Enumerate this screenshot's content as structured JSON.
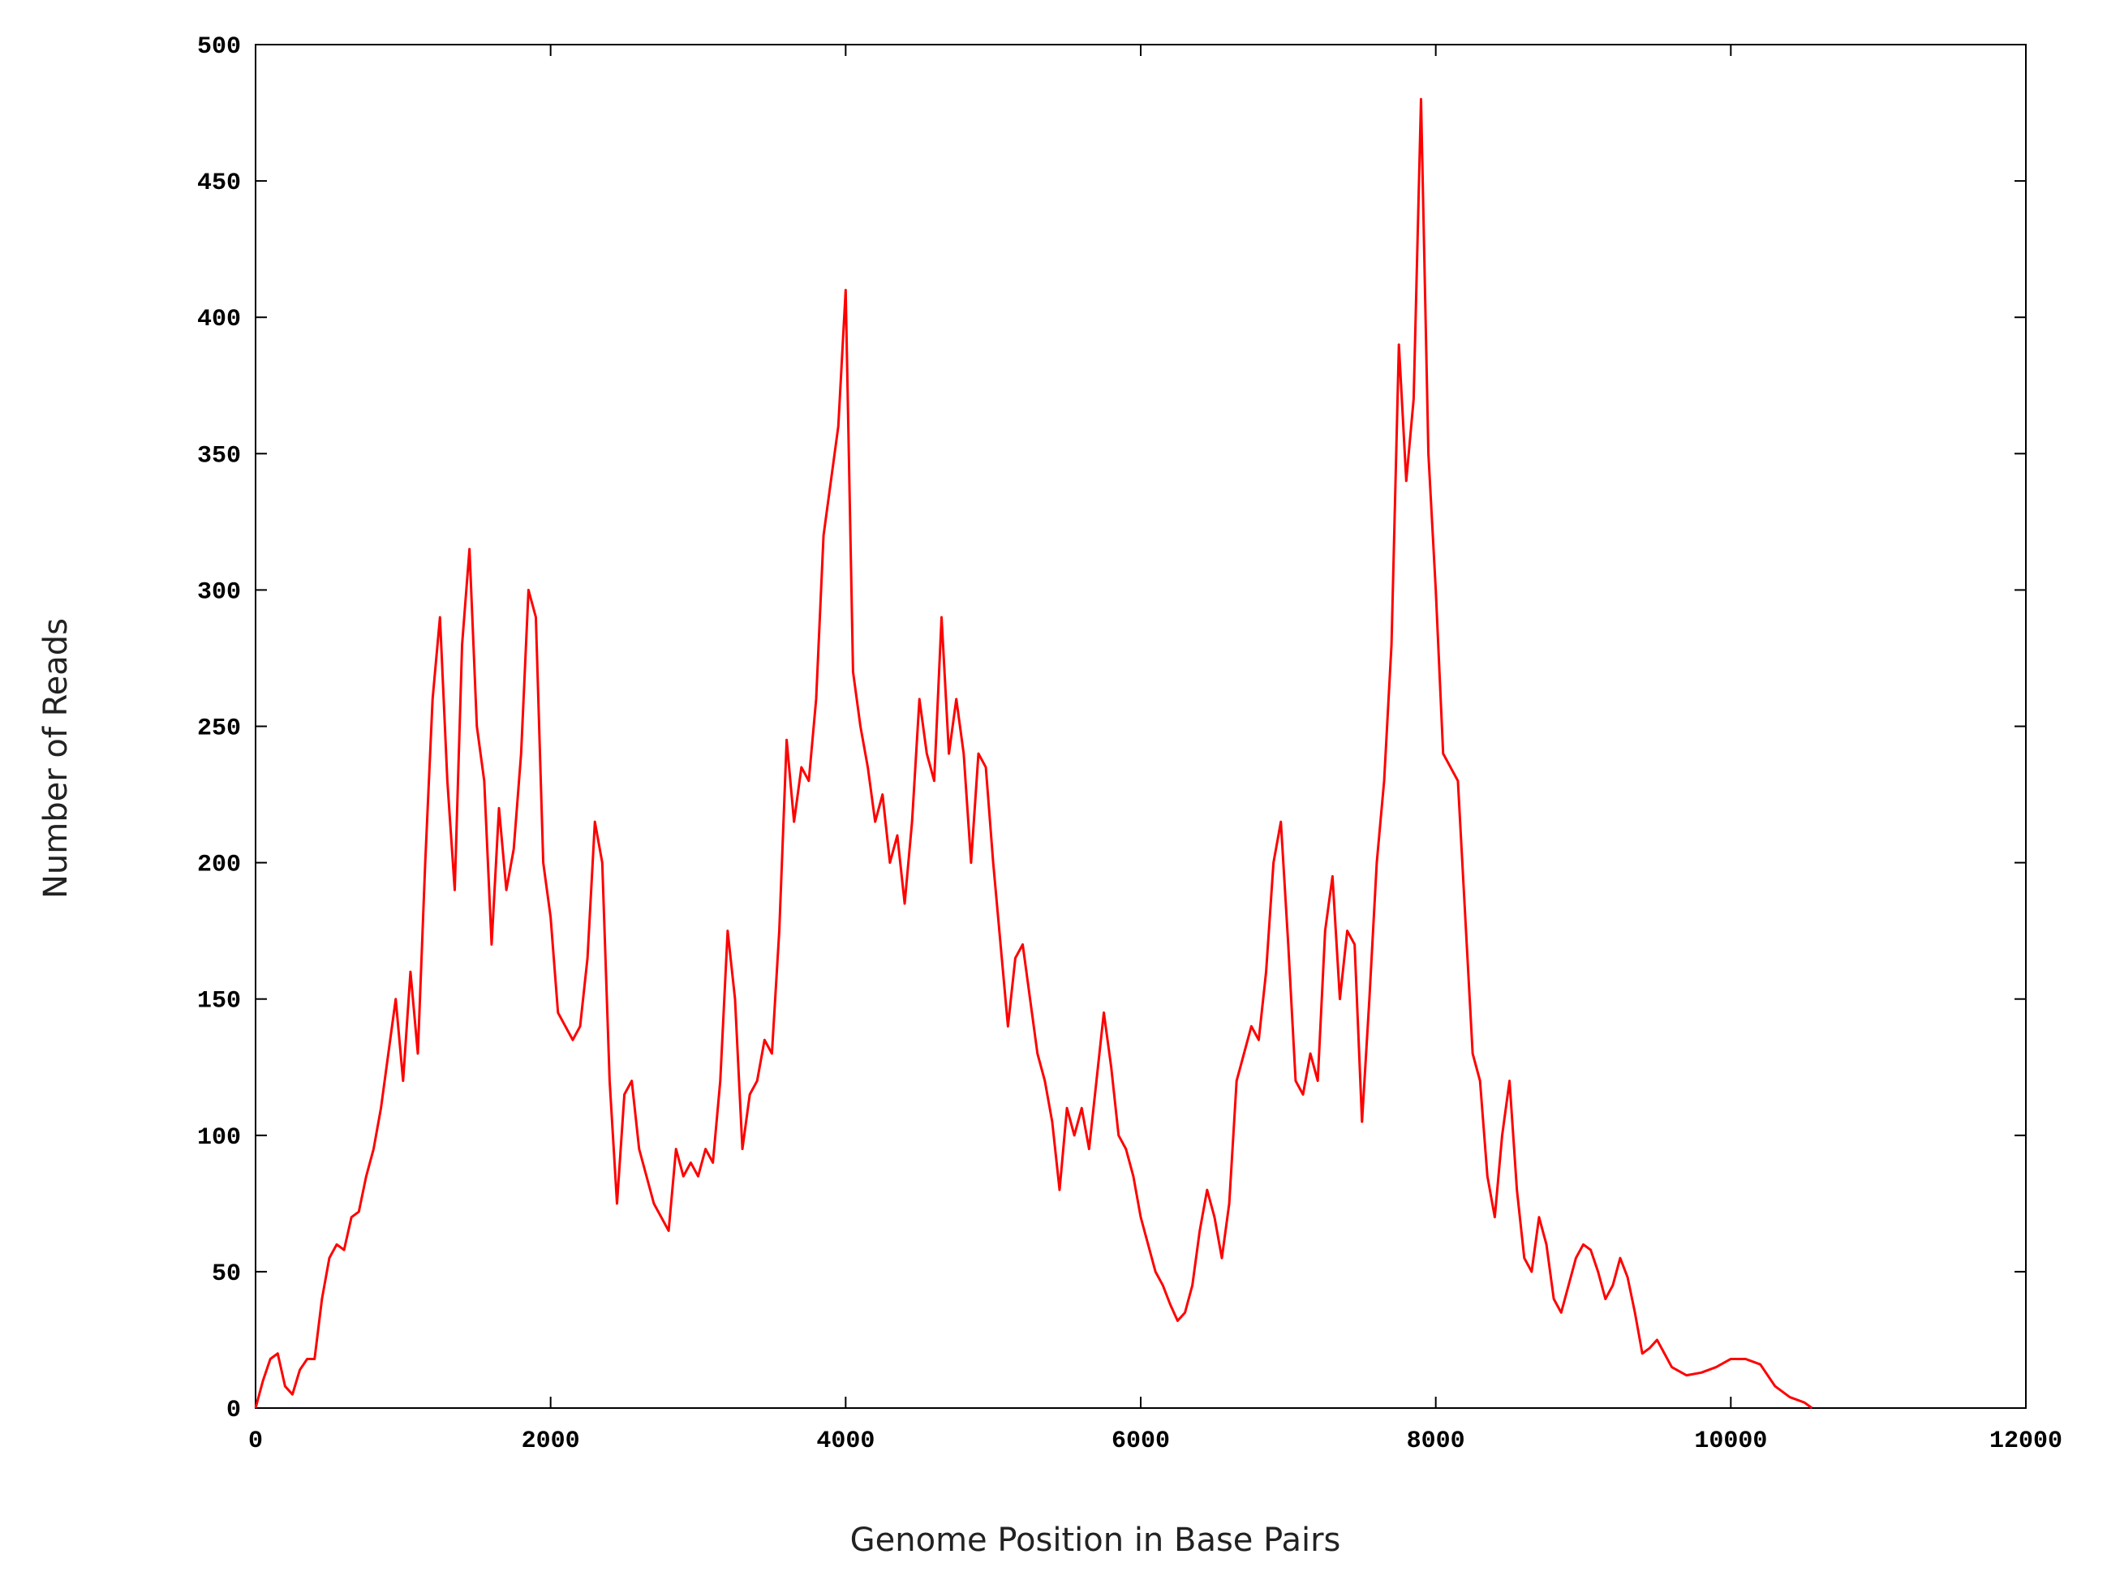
{
  "chart_data": {
    "type": "line",
    "xlabel": "Genome Position in Base Pairs",
    "ylabel": "Number of Reads",
    "xlim": [
      0,
      12000
    ],
    "xticks": [
      0,
      2000,
      4000,
      6000,
      8000,
      10000,
      12000
    ],
    "ylim": [
      0,
      500
    ],
    "yticks": [
      0,
      50,
      100,
      150,
      200,
      250,
      300,
      350,
      400,
      450,
      500
    ],
    "grid": false,
    "x": [
      0,
      50,
      100,
      150,
      200,
      250,
      300,
      350,
      400,
      450,
      500,
      550,
      600,
      650,
      700,
      750,
      800,
      850,
      900,
      950,
      1000,
      1050,
      1100,
      1150,
      1200,
      1250,
      1300,
      1350,
      1400,
      1450,
      1500,
      1550,
      1600,
      1650,
      1700,
      1750,
      1800,
      1850,
      1900,
      1950,
      2000,
      2050,
      2100,
      2150,
      2200,
      2250,
      2300,
      2350,
      2400,
      2450,
      2500,
      2550,
      2600,
      2650,
      2700,
      2750,
      2800,
      2850,
      2900,
      2950,
      3000,
      3050,
      3100,
      3150,
      3200,
      3250,
      3300,
      3350,
      3400,
      3450,
      3500,
      3550,
      3600,
      3650,
      3700,
      3750,
      3800,
      3850,
      3900,
      3950,
      4000,
      4050,
      4100,
      4150,
      4200,
      4250,
      4300,
      4350,
      4400,
      4450,
      4500,
      4550,
      4600,
      4650,
      4700,
      4750,
      4800,
      4850,
      4900,
      4950,
      5000,
      5050,
      5100,
      5150,
      5200,
      5250,
      5300,
      5350,
      5400,
      5450,
      5500,
      5550,
      5600,
      5650,
      5700,
      5750,
      5800,
      5850,
      5900,
      5950,
      6000,
      6050,
      6100,
      6150,
      6200,
      6250,
      6300,
      6350,
      6400,
      6450,
      6500,
      6550,
      6600,
      6650,
      6700,
      6750,
      6800,
      6850,
      6900,
      6950,
      7000,
      7050,
      7100,
      7150,
      7200,
      7250,
      7300,
      7350,
      7400,
      7450,
      7500,
      7550,
      7600,
      7650,
      7700,
      7750,
      7800,
      7850,
      7900,
      7950,
      8000,
      8050,
      8100,
      8150,
      8200,
      8250,
      8300,
      8350,
      8400,
      8450,
      8500,
      8550,
      8600,
      8650,
      8700,
      8750,
      8800,
      8850,
      8900,
      8950,
      9000,
      9050,
      9100,
      9150,
      9200,
      9250,
      9300,
      9350,
      9400,
      9450,
      9500,
      9550,
      9600,
      9700,
      9800,
      9900,
      10000,
      10100,
      10200,
      10300,
      10400,
      10500,
      10550
    ],
    "series": [
      {
        "color": "#ff0000",
        "values": [
          0,
          10,
          18,
          20,
          8,
          5,
          14,
          18,
          18,
          40,
          55,
          60,
          58,
          70,
          72,
          85,
          95,
          110,
          130,
          150,
          120,
          160,
          130,
          200,
          260,
          290,
          230,
          190,
          280,
          315,
          250,
          230,
          170,
          220,
          190,
          205,
          240,
          300,
          290,
          200,
          180,
          145,
          140,
          135,
          140,
          165,
          215,
          200,
          120,
          75,
          115,
          120,
          95,
          85,
          75,
          70,
          65,
          95,
          85,
          90,
          85,
          95,
          90,
          120,
          175,
          150,
          95,
          115,
          120,
          135,
          130,
          175,
          245,
          215,
          235,
          230,
          260,
          320,
          340,
          360,
          410,
          270,
          250,
          235,
          215,
          225,
          200,
          210,
          185,
          215,
          260,
          240,
          230,
          290,
          240,
          260,
          240,
          200,
          240,
          235,
          200,
          170,
          140,
          165,
          170,
          150,
          130,
          120,
          105,
          80,
          110,
          100,
          110,
          95,
          120,
          145,
          125,
          100,
          95,
          85,
          70,
          60,
          50,
          45,
          38,
          32,
          35,
          45,
          65,
          80,
          70,
          55,
          75,
          120,
          130,
          140,
          135,
          160,
          200,
          215,
          170,
          120,
          115,
          130,
          120,
          175,
          195,
          150,
          175,
          170,
          105,
          150,
          200,
          230,
          280,
          390,
          340,
          370,
          480,
          350,
          300,
          240,
          235,
          230,
          180,
          130,
          120,
          85,
          70,
          100,
          120,
          80,
          55,
          50,
          70,
          60,
          40,
          35,
          45,
          55,
          60,
          58,
          50,
          40,
          45,
          55,
          48,
          35,
          20,
          22,
          25,
          20,
          15,
          12,
          13,
          15,
          18,
          18,
          16,
          8,
          4,
          2,
          0
        ]
      }
    ]
  }
}
